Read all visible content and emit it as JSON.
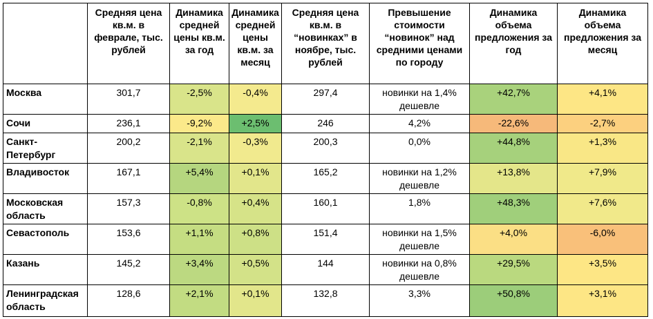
{
  "header": {
    "col_city": "",
    "col_price_feb": "Средняя цена кв.м. в феврале, тыс. рублей",
    "col_dyn_year": "Динамика средней цены кв.м. за год",
    "col_dyn_month": "Динамика средней цены кв.м. за месяц",
    "col_price_new": "Средняя цена кв.м. в “новинках” в ноябре, тыс. рублей",
    "col_excess": "Превышение стоимости “новинок” над средними ценами по городу",
    "col_supply_year": "Динамика объема предложения за год",
    "col_supply_month": "Динамика объема предложения за месяц"
  },
  "rows": [
    {
      "city": "Москва",
      "price_feb": "301,7",
      "dyn_year": "-2,5%",
      "dyn_month": "-0,4%",
      "price_new": "297,4",
      "excess": "новинки на 1,4% дешевле",
      "supply_year": "+42,7%",
      "supply_month": "+4,1%"
    },
    {
      "city": "Сочи",
      "price_feb": "236,1",
      "dyn_year": "-9,2%",
      "dyn_month": "+2,5%",
      "price_new": "246",
      "excess": "4,2%",
      "supply_year": "-22,6%",
      "supply_month": "-2,7%"
    },
    {
      "city": "Санкт-Петербург",
      "price_feb": "200,2",
      "dyn_year": "-2,1%",
      "dyn_month": "-0,3%",
      "price_new": "200,3",
      "excess": "0,0%",
      "supply_year": "+44,8%",
      "supply_month": "+1,3%"
    },
    {
      "city": "Владивосток",
      "price_feb": "167,1",
      "dyn_year": "+5,4%",
      "dyn_month": "+0,1%",
      "price_new": "165,2",
      "excess": "новинки на 1,2% дешевле",
      "supply_year": "+13,8%",
      "supply_month": "+7,9%"
    },
    {
      "city": "Московская область",
      "price_feb": "157,3",
      "dyn_year": "-0,8%",
      "dyn_month": "+0,4%",
      "price_new": "160,1",
      "excess": "1,8%",
      "supply_year": "+48,3%",
      "supply_month": "+7,6%"
    },
    {
      "city": "Севастополь",
      "price_feb": "153,6",
      "dyn_year": "+1,1%",
      "dyn_month": "+0,8%",
      "price_new": "151,4",
      "excess": "новинки на 1,5% дешевле",
      "supply_year": "+4,0%",
      "supply_month": "-6,0%"
    },
    {
      "city": "Казань",
      "price_feb": "145,2",
      "dyn_year": "+3,4%",
      "dyn_month": "+0,5%",
      "price_new": "144",
      "excess": "новинки на 0,8% дешевле",
      "supply_year": "+29,5%",
      "supply_month": "+3,5%"
    },
    {
      "city": "Ленинградская область",
      "price_feb": "128,6",
      "dyn_year": "+2,1%",
      "dyn_month": "+0,1%",
      "price_new": "132,8",
      "excess": "3,3%",
      "supply_year": "+50,8%",
      "supply_month": "+3,1%"
    }
  ],
  "colors": {
    "dyn_year": [
      "#d9e48a",
      "#fbe98a",
      "#d9e48a",
      "#b5d67f",
      "#cde286",
      "#c5dd82",
      "#bcd981",
      "#c2dc82"
    ],
    "dyn_month": [
      "#f4ea8e",
      "#6cbe70",
      "#f1ea8e",
      "#e2e68b",
      "#d6e388",
      "#cde086",
      "#d3e288",
      "#e2e68b"
    ],
    "supply_year": [
      "#a9d27c",
      "#f6b97a",
      "#a6d17c",
      "#e4e68a",
      "#a0cf7b",
      "#fbdf85",
      "#bad97f",
      "#9ccd7a"
    ],
    "supply_month": [
      "#fde685",
      "#fcd07f",
      "#f9e786",
      "#f0e98a",
      "#f1e98a",
      "#f9c07a",
      "#fde685",
      "#fde685"
    ]
  }
}
